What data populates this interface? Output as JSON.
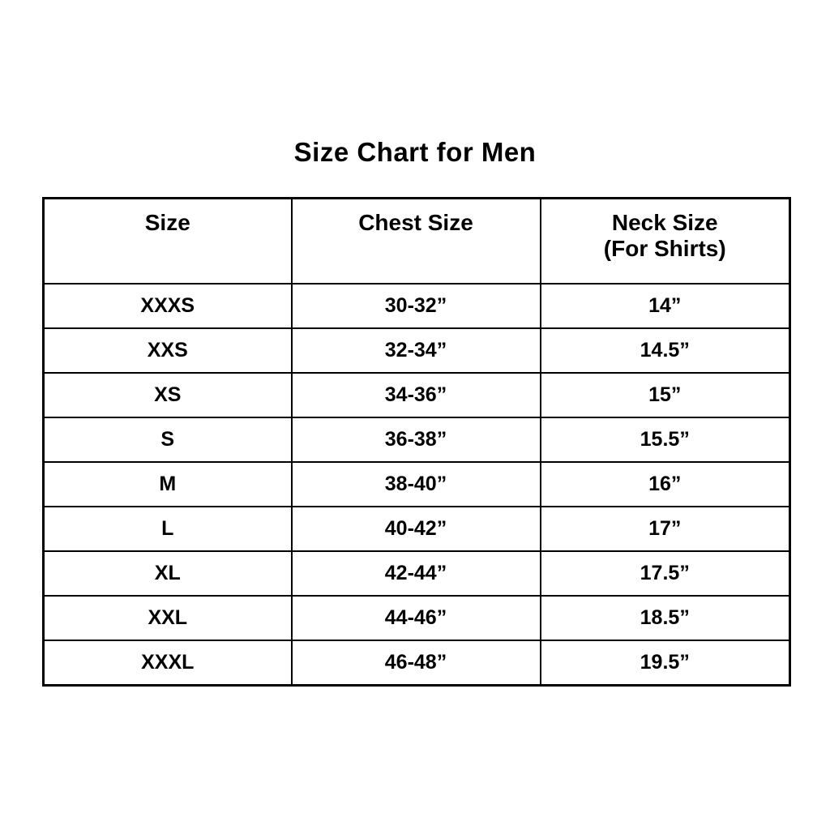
{
  "title": "Size Chart for Men",
  "colors": {
    "text": "#000000",
    "border": "#000000",
    "background": "#ffffff"
  },
  "table": {
    "header": {
      "size": "Size",
      "chest": "Chest Size",
      "neck_line1": "Neck Size",
      "neck_line2": "(For Shirts)"
    },
    "rows": [
      [
        "XXXS",
        "30-32”",
        "14”"
      ],
      [
        "XXS",
        "32-34”",
        "14.5”"
      ],
      [
        "XS",
        "34-36”",
        "15”"
      ],
      [
        "S",
        "36-38”",
        "15.5”"
      ],
      [
        "M",
        "38-40”",
        "16”"
      ],
      [
        "L",
        "40-42”",
        "17”"
      ],
      [
        "XL",
        "42-44”",
        "17.5”"
      ],
      [
        "XXL",
        "44-46”",
        "18.5”"
      ],
      [
        "XXXL",
        "46-48”",
        "19.5”"
      ]
    ]
  },
  "chart_data": {
    "type": "table",
    "title": "Size Chart for Men",
    "columns": [
      "Size",
      "Chest Size",
      "Neck Size (For Shirts)"
    ],
    "rows": [
      [
        "XXXS",
        "30-32”",
        "14”"
      ],
      [
        "XXS",
        "32-34”",
        "14.5”"
      ],
      [
        "XS",
        "34-36”",
        "15”"
      ],
      [
        "S",
        "36-38”",
        "15.5”"
      ],
      [
        "M",
        "38-40”",
        "16”"
      ],
      [
        "L",
        "40-42”",
        "17”"
      ],
      [
        "XL",
        "42-44”",
        "17.5”"
      ],
      [
        "XXL",
        "44-46”",
        "18.5”"
      ],
      [
        "XXXL",
        "46-48”",
        "19.5”"
      ]
    ]
  }
}
